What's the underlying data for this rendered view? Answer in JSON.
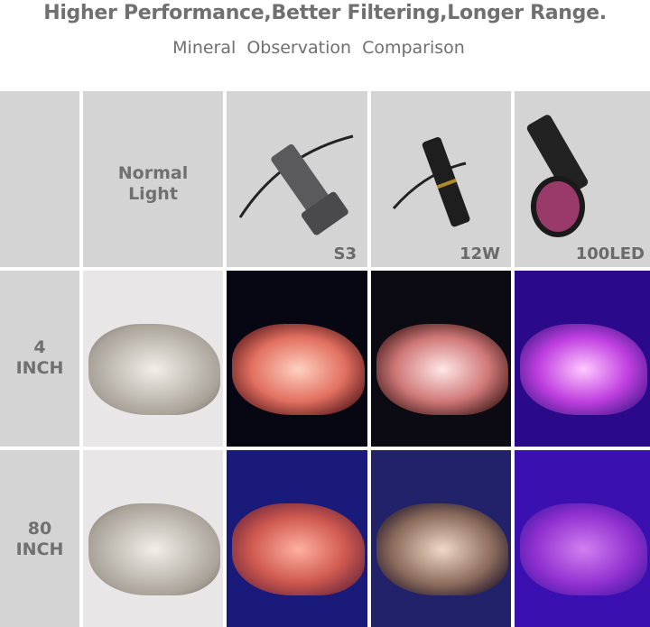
{
  "title": "Higher Performance,Better Filtering,Longer Range.",
  "subtitle": "Mineral  Observation  Comparison",
  "columns": [
    {
      "label": "Normal Light"
    },
    {
      "label": "S3",
      "icon": "flashlight-icon"
    },
    {
      "label": "12W",
      "icon": "slim-flashlight-icon"
    },
    {
      "label": "100LED",
      "icon": "led-flashlight-icon"
    }
  ],
  "rows": [
    {
      "label_line1": "4",
      "label_line2": "INCH"
    },
    {
      "label_line1": "80",
      "label_line2": "INCH"
    }
  ],
  "normal_light_line1": "Normal",
  "normal_light_line2": "Light"
}
